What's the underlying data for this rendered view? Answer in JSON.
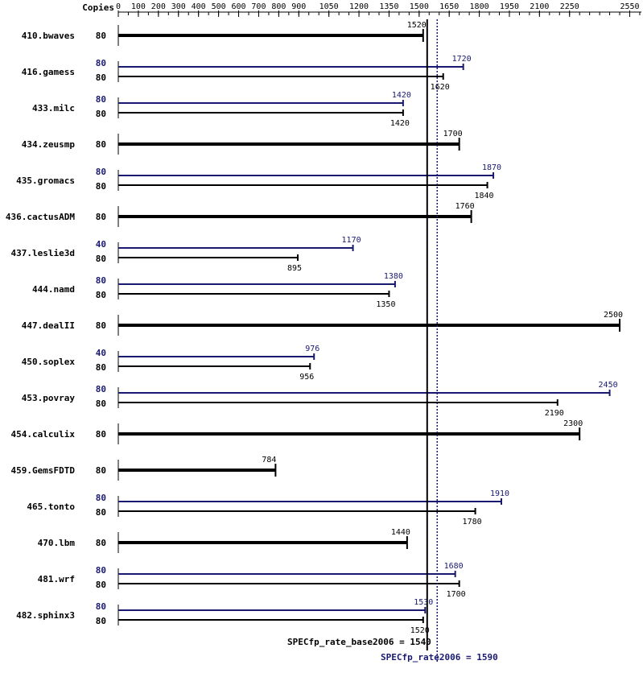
{
  "chart_data": {
    "type": "bar",
    "copies_header": "Copies",
    "axis_ticks": [
      0,
      100,
      200,
      300,
      400,
      500,
      600,
      700,
      800,
      900,
      1050,
      1200,
      1350,
      1500,
      1650,
      1800,
      1950,
      2100,
      2250,
      2550
    ],
    "xlim": [
      0,
      2550
    ],
    "colors": {
      "base": "#000000",
      "peak": "#191970"
    },
    "benchmarks": [
      {
        "name": "410.bwaves",
        "base": {
          "copies": "80",
          "value": 1520,
          "label": "1520"
        }
      },
      {
        "name": "416.gamess",
        "peak": {
          "copies": "80",
          "value": 1720,
          "label": "1720"
        },
        "base": {
          "copies": "80",
          "value": 1620,
          "label": "1620"
        }
      },
      {
        "name": "433.milc",
        "peak": {
          "copies": "80",
          "value": 1420,
          "label": "1420"
        },
        "base": {
          "copies": "80",
          "value": 1420,
          "label": "1420"
        }
      },
      {
        "name": "434.zeusmp",
        "base": {
          "copies": "80",
          "value": 1700,
          "label": "1700"
        }
      },
      {
        "name": "435.gromacs",
        "peak": {
          "copies": "80",
          "value": 1870,
          "label": "1870"
        },
        "base": {
          "copies": "80",
          "value": 1840,
          "label": "1840"
        }
      },
      {
        "name": "436.cactusADM",
        "base": {
          "copies": "80",
          "value": 1760,
          "label": "1760"
        }
      },
      {
        "name": "437.leslie3d",
        "peak": {
          "copies": "40",
          "value": 1170,
          "label": "1170"
        },
        "base": {
          "copies": "80",
          "value": 895,
          "label": "895"
        }
      },
      {
        "name": "444.namd",
        "peak": {
          "copies": "80",
          "value": 1380,
          "label": "1380"
        },
        "base": {
          "copies": "80",
          "value": 1350,
          "label": "1350"
        }
      },
      {
        "name": "447.dealII",
        "base": {
          "copies": "80",
          "value": 2500,
          "label": "2500"
        }
      },
      {
        "name": "450.soplex",
        "peak": {
          "copies": "40",
          "value": 976,
          "label": "976"
        },
        "base": {
          "copies": "80",
          "value": 956,
          "label": "956"
        }
      },
      {
        "name": "453.povray",
        "peak": {
          "copies": "80",
          "value": 2450,
          "label": "2450"
        },
        "base": {
          "copies": "80",
          "value": 2190,
          "label": "2190"
        }
      },
      {
        "name": "454.calculix",
        "base": {
          "copies": "80",
          "value": 2300,
          "label": "2300"
        }
      },
      {
        "name": "459.GemsFDTD",
        "base": {
          "copies": "80",
          "value": 784,
          "label": "784"
        }
      },
      {
        "name": "465.tonto",
        "peak": {
          "copies": "80",
          "value": 1910,
          "label": "1910"
        },
        "base": {
          "copies": "80",
          "value": 1780,
          "label": "1780"
        }
      },
      {
        "name": "470.lbm",
        "base": {
          "copies": "80",
          "value": 1440,
          "label": "1440"
        }
      },
      {
        "name": "481.wrf",
        "peak": {
          "copies": "80",
          "value": 1680,
          "label": "1680"
        },
        "base": {
          "copies": "80",
          "value": 1700,
          "label": "1700"
        }
      },
      {
        "name": "482.sphinx3",
        "peak": {
          "copies": "80",
          "value": 1530,
          "label": "1530"
        },
        "base": {
          "copies": "80",
          "value": 1520,
          "label": "1520"
        }
      }
    ],
    "summary_base": {
      "label": "SPECfp_rate_base2006 = 1540",
      "value": 1540
    },
    "summary_peak": {
      "label": "SPECfp_rate2006 = 1590",
      "value": 1590
    }
  }
}
